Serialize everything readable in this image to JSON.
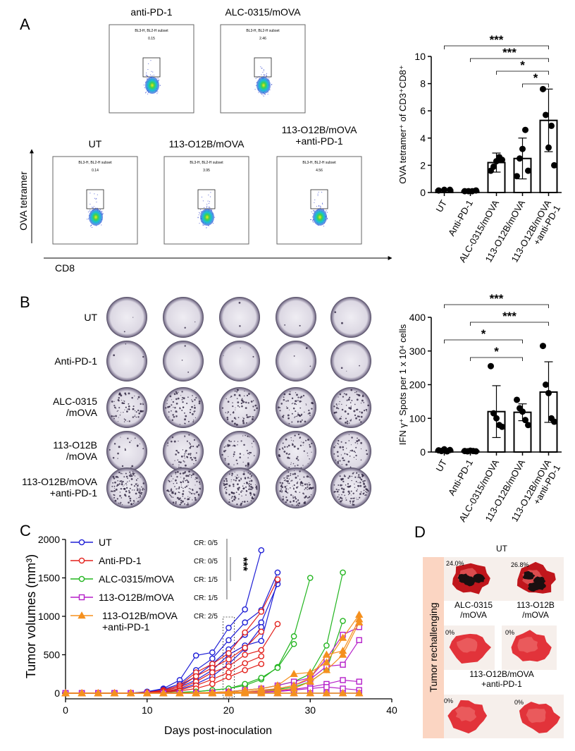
{
  "panel_labels": [
    "A",
    "B",
    "C",
    "D"
  ],
  "flow": {
    "y_axis": "OVA tetramer",
    "x_axis": "CD8",
    "plots": [
      {
        "title": "anti-PD-1",
        "gate": "BL3-H, BL2-H subset",
        "value": "0.15"
      },
      {
        "title": "ALC-0315/mOVA",
        "gate": "BL3-H, BL2-H subset",
        "value": "2.46"
      },
      {
        "title": "UT",
        "gate": "BL3-H, BL2-H subset",
        "value": "0.14"
      },
      {
        "title": "113-O12B/mOVA",
        "gate": "BL3-H, BL2-H subset",
        "value": "3.95"
      },
      {
        "title": "113-O12B/mOVA\n+anti-PD-1",
        "gate": "BL3-H, BL2-H subset",
        "value": "4.56"
      }
    ]
  },
  "elispot": {
    "rows": [
      "UT",
      "Anti-PD-1",
      "ALC-0315\n/mOVA",
      "113-O12B\n/mOVA",
      "113-O12B/mOVA\n+anti-PD-1"
    ]
  },
  "lungs": {
    "side_label": "Tumor rechallenging",
    "groups": [
      {
        "label": "UT",
        "percents": [
          "24.0%",
          "26.8%"
        ]
      },
      {
        "label": "ALC-0315\n/mOVA",
        "percents": [
          "0%"
        ]
      },
      {
        "label": "113-O12B\n/mOVA",
        "percents": [
          "0%"
        ]
      },
      {
        "label": "113-O12B/mOVA\n+anti-PD-1",
        "percents": [
          "0%",
          "0%"
        ]
      }
    ]
  },
  "chart_data": [
    {
      "type": "bar",
      "y_label": "OVA tetramer⁺ of CD3⁺CD8⁺",
      "categories": [
        "UT",
        "Anti-PD-1",
        "ALC-0315/mOVA",
        "113-O12B/mOVA",
        "113-O12B/mOVA\n+anti-PD-1"
      ],
      "values": [
        0.18,
        0.1,
        2.2,
        2.5,
        5.3
      ],
      "errors": [
        0.05,
        0.04,
        0.7,
        1.5,
        2.3
      ],
      "points": [
        [
          0.15,
          0.2,
          0.2
        ],
        [
          0.1,
          0.1,
          0.1,
          0.15
        ],
        [
          1.6,
          1.9,
          2.3,
          2.6,
          2.4
        ],
        [
          1.2,
          2.5,
          3.2,
          4.6,
          1.6
        ],
        [
          7.6,
          5.7,
          3.3,
          4.9,
          2.0
        ]
      ],
      "color": "#000000",
      "ylim": [
        0,
        10
      ],
      "yticks": [
        0,
        2,
        4,
        6,
        8,
        10
      ],
      "comparisons": [
        {
          "from": 0,
          "to": 4,
          "label": "***"
        },
        {
          "from": 1,
          "to": 4,
          "label": "***"
        },
        {
          "from": 2,
          "to": 4,
          "label": "*"
        },
        {
          "from": 3,
          "to": 4,
          "label": "*"
        }
      ]
    },
    {
      "type": "bar",
      "y_label": "IFN γ⁺ Spots per 1 x 10⁴ cells",
      "categories": [
        "UT",
        "Anti-PD-1",
        "ALC-0315/mOVA",
        "113-O12B/mOVA",
        "113-O12B/mOVA\n+anti-PD-1"
      ],
      "values": [
        5,
        3,
        120,
        118,
        178
      ],
      "errors": [
        3,
        2,
        77,
        25,
        90
      ],
      "points": [
        [
          5,
          3,
          8,
          2,
          6
        ],
        [
          3,
          2,
          4,
          3,
          2
        ],
        [
          255,
          115,
          100,
          80,
          75
        ],
        [
          155,
          130,
          120,
          95,
          80
        ],
        [
          315,
          200,
          175,
          100,
          90
        ]
      ],
      "color": "#000000",
      "ylim": [
        0,
        400
      ],
      "yticks": [
        0,
        100,
        200,
        300,
        400
      ],
      "comparisons": [
        {
          "from": 0,
          "to": 4,
          "label": "***"
        },
        {
          "from": 1,
          "to": 4,
          "label": "***"
        },
        {
          "from": 0,
          "to": 3,
          "label": "*"
        },
        {
          "from": 1,
          "to": 3,
          "label": "*"
        }
      ]
    },
    {
      "type": "line",
      "x_label": "Days post-inoculation",
      "y_label": "Tumor volumes (mm³)",
      "annotation": "***",
      "x": [
        0,
        2,
        4,
        6,
        8,
        10,
        12,
        14,
        16,
        18,
        20,
        22,
        24,
        26,
        28,
        30,
        32,
        34,
        36
      ],
      "xlim": [
        0,
        40
      ],
      "xticks": [
        0,
        10,
        20,
        30,
        40
      ],
      "ylim": [
        0,
        2000
      ],
      "yticks": [
        0,
        500,
        1000,
        1500,
        2000
      ],
      "series": [
        {
          "name": "UT",
          "color": "#1f1fd6",
          "marker": "circle",
          "cr": "CR: 0/5",
          "mice": [
            [
              0,
              0,
              0,
              0,
              0,
              20,
              60,
              170,
              490,
              530,
              850,
              1090,
              1860,
              null,
              null,
              null,
              null,
              null,
              null
            ],
            [
              0,
              0,
              0,
              0,
              0,
              15,
              50,
              120,
              300,
              450,
              690,
              920,
              1080,
              1570,
              null,
              null,
              null,
              null,
              null
            ],
            [
              0,
              0,
              0,
              0,
              0,
              10,
              40,
              100,
              220,
              380,
              570,
              760,
              920,
              1420,
              null,
              null,
              null,
              null,
              null
            ],
            [
              0,
              0,
              0,
              0,
              0,
              10,
              30,
              80,
              170,
              300,
              500,
              620,
              680,
              1470,
              null,
              null,
              null,
              null,
              null
            ],
            [
              0,
              0,
              0,
              0,
              0,
              5,
              20,
              50,
              120,
              220,
              380,
              580,
              860,
              null,
              null,
              null,
              null,
              null,
              null
            ]
          ]
        },
        {
          "name": "Anti-PD-1",
          "color": "#e3211c",
          "marker": "circle",
          "cr": "CR: 0/5",
          "mice": [
            [
              0,
              0,
              0,
              0,
              0,
              10,
              40,
              100,
              270,
              380,
              520,
              790,
              1060,
              1480,
              null,
              null,
              null,
              null,
              null
            ],
            [
              0,
              0,
              0,
              0,
              0,
              10,
              30,
              80,
              220,
              330,
              440,
              590,
              800,
              null,
              null,
              null,
              null,
              null,
              null
            ],
            [
              0,
              0,
              0,
              0,
              0,
              5,
              20,
              60,
              150,
              270,
              350,
              500,
              560,
              900,
              null,
              null,
              null,
              null,
              null
            ],
            [
              0,
              0,
              0,
              0,
              0,
              5,
              15,
              40,
              100,
              180,
              270,
              390,
              480,
              null,
              null,
              null,
              null,
              null,
              null
            ],
            [
              0,
              0,
              0,
              0,
              0,
              3,
              10,
              30,
              60,
              120,
              210,
              300,
              380,
              null,
              null,
              null,
              null,
              null,
              null
            ]
          ]
        },
        {
          "name": "ALC-0315/mOVA",
          "color": "#22b51f",
          "marker": "circle",
          "cr": "CR: 1/5",
          "mice": [
            [
              0,
              0,
              0,
              0,
              0,
              0,
              0,
              10,
              20,
              40,
              60,
              100,
              180,
              340,
              740,
              1500,
              null,
              null,
              null
            ],
            [
              0,
              0,
              0,
              0,
              0,
              0,
              5,
              10,
              20,
              40,
              60,
              120,
              200,
              330,
              640,
              null,
              null,
              null,
              null
            ],
            [
              0,
              0,
              0,
              0,
              0,
              0,
              0,
              0,
              5,
              10,
              20,
              40,
              60,
              100,
              150,
              250,
              620,
              1570,
              null
            ],
            [
              0,
              0,
              0,
              0,
              0,
              0,
              0,
              0,
              0,
              5,
              10,
              20,
              30,
              50,
              80,
              150,
              300,
              940,
              null
            ],
            [
              0,
              0,
              0,
              0,
              0,
              0,
              0,
              0,
              0,
              0,
              0,
              0,
              0,
              0,
              0,
              0,
              0,
              0,
              0
            ]
          ]
        },
        {
          "name": "113-O12B/mOVA",
          "color": "#b51fc9",
          "marker": "square",
          "cr": "CR: 1/5",
          "mice": [
            [
              0,
              0,
              0,
              0,
              0,
              0,
              0,
              0,
              5,
              10,
              20,
              40,
              60,
              100,
              150,
              200,
              450,
              760,
              860
            ],
            [
              0,
              0,
              0,
              0,
              0,
              0,
              0,
              0,
              0,
              5,
              10,
              20,
              30,
              60,
              100,
              180,
              350,
              370,
              690
            ],
            [
              0,
              0,
              0,
              0,
              0,
              0,
              0,
              0,
              0,
              0,
              5,
              10,
              20,
              30,
              50,
              80,
              120,
              170,
              150
            ],
            [
              0,
              0,
              0,
              0,
              0,
              0,
              0,
              0,
              0,
              0,
              0,
              5,
              10,
              20,
              40,
              60,
              80,
              60,
              40
            ],
            [
              0,
              0,
              0,
              0,
              0,
              0,
              0,
              0,
              0,
              0,
              0,
              0,
              0,
              0,
              0,
              0,
              0,
              0,
              0
            ]
          ]
        },
        {
          "name": "113-O12B/mOVA\n+anti-PD-1",
          "color": "#f5901e",
          "marker": "triangle",
          "cr": "CR: 2/5",
          "mice": [
            [
              0,
              0,
              0,
              0,
              0,
              0,
              0,
              0,
              5,
              10,
              20,
              40,
              60,
              100,
              250,
              270,
              400,
              720,
              1020
            ],
            [
              0,
              0,
              0,
              0,
              0,
              0,
              0,
              0,
              0,
              5,
              10,
              20,
              40,
              60,
              100,
              200,
              500,
              550,
              960
            ],
            [
              0,
              0,
              0,
              0,
              0,
              0,
              0,
              0,
              0,
              0,
              5,
              10,
              20,
              40,
              60,
              150,
              300,
              500,
              920
            ],
            [
              0,
              0,
              0,
              0,
              0,
              0,
              0,
              0,
              0,
              0,
              0,
              0,
              0,
              0,
              0,
              0,
              0,
              0,
              0
            ],
            [
              0,
              0,
              0,
              0,
              0,
              0,
              0,
              0,
              0,
              0,
              0,
              0,
              0,
              0,
              0,
              0,
              0,
              0,
              0
            ]
          ]
        }
      ]
    }
  ]
}
